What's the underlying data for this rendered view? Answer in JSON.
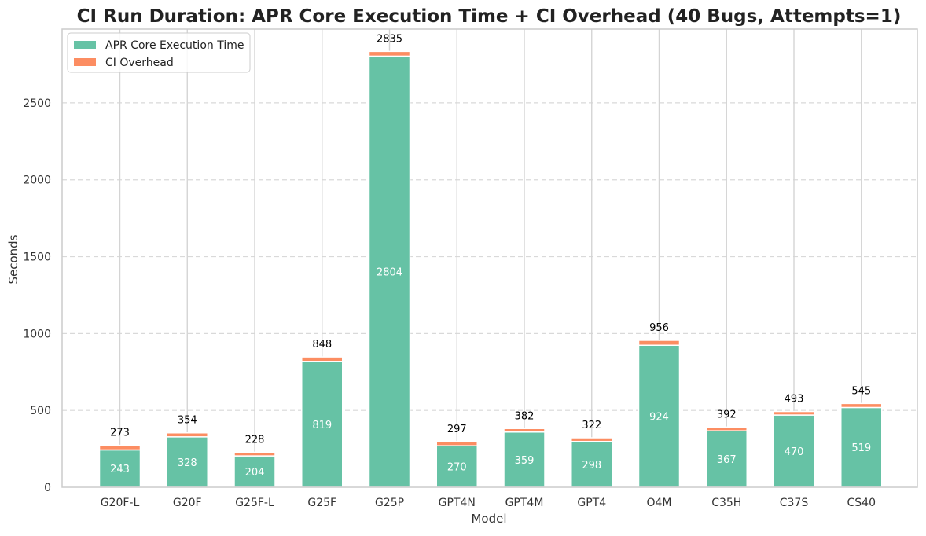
{
  "chart_data": {
    "type": "bar",
    "stacked": true,
    "title": "CI Run Duration: APR Core Execution Time + CI Overhead  (40 Bugs, Attempts=1)",
    "xlabel": "Model",
    "ylabel": "Seconds",
    "ylim": [
      0,
      2980
    ],
    "yticks": [
      0,
      500,
      1000,
      1500,
      2000,
      2500
    ],
    "grid": "y-dashed",
    "legend_position": "top-left",
    "categories": [
      "G20F-L",
      "G20F",
      "G25F-L",
      "G25F",
      "G25P",
      "GPT4N",
      "GPT4M",
      "GPT4",
      "O4M",
      "C35H",
      "C37S",
      "CS40"
    ],
    "series": [
      {
        "name": "APR Core Execution Time",
        "color": "#66c2a5",
        "values": [
          243,
          328,
          204,
          819,
          2804,
          270,
          359,
          298,
          924,
          367,
          470,
          519
        ]
      },
      {
        "name": "CI Overhead",
        "color": "#fc8d62",
        "values": [
          30,
          26,
          24,
          29,
          31,
          27,
          23,
          24,
          32,
          25,
          23,
          26
        ]
      }
    ],
    "totals": [
      273,
      354,
      228,
      848,
      2835,
      297,
      382,
      322,
      956,
      392,
      493,
      545
    ]
  }
}
